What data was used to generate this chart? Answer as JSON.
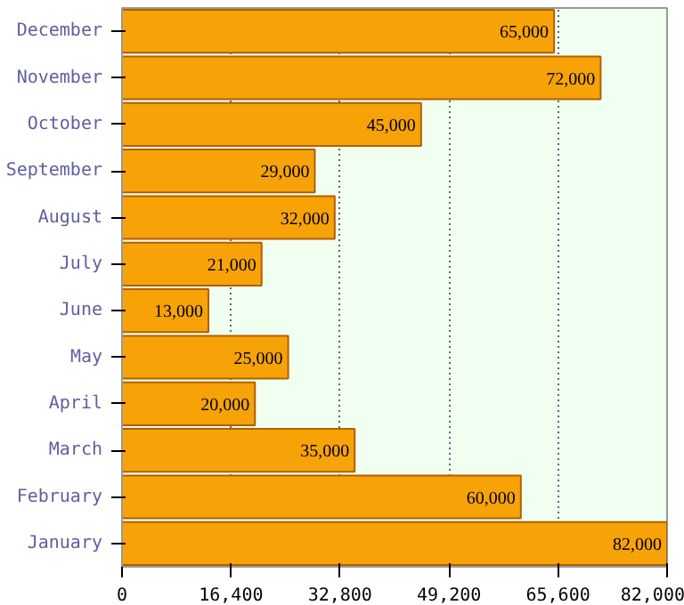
{
  "chart_data": {
    "type": "bar",
    "orientation": "horizontal",
    "categories": [
      "December",
      "November",
      "October",
      "September",
      "August",
      "July",
      "June",
      "May",
      "April",
      "March",
      "February",
      "January"
    ],
    "values": [
      65000,
      72000,
      45000,
      29000,
      32000,
      21000,
      13000,
      25000,
      20000,
      35000,
      60000,
      82000
    ],
    "value_labels": [
      "65,000",
      "72,000",
      "45,000",
      "29,000",
      "32,000",
      "21,000",
      "13,000",
      "25,000",
      "20,000",
      "35,000",
      "60,000",
      "82,000"
    ],
    "color": "#f7a308",
    "xlim": [
      0,
      82000
    ],
    "xticks": [
      0,
      {
        "value": 16400,
        "label": "16,400"
      },
      {
        "value": 32800,
        "label": "32,800"
      },
      {
        "value": 49200,
        "label": "49,200"
      },
      {
        "value": 65600,
        "label": "65,600"
      },
      {
        "value": 82000,
        "label": "82,000"
      }
    ],
    "grid": "x"
  }
}
